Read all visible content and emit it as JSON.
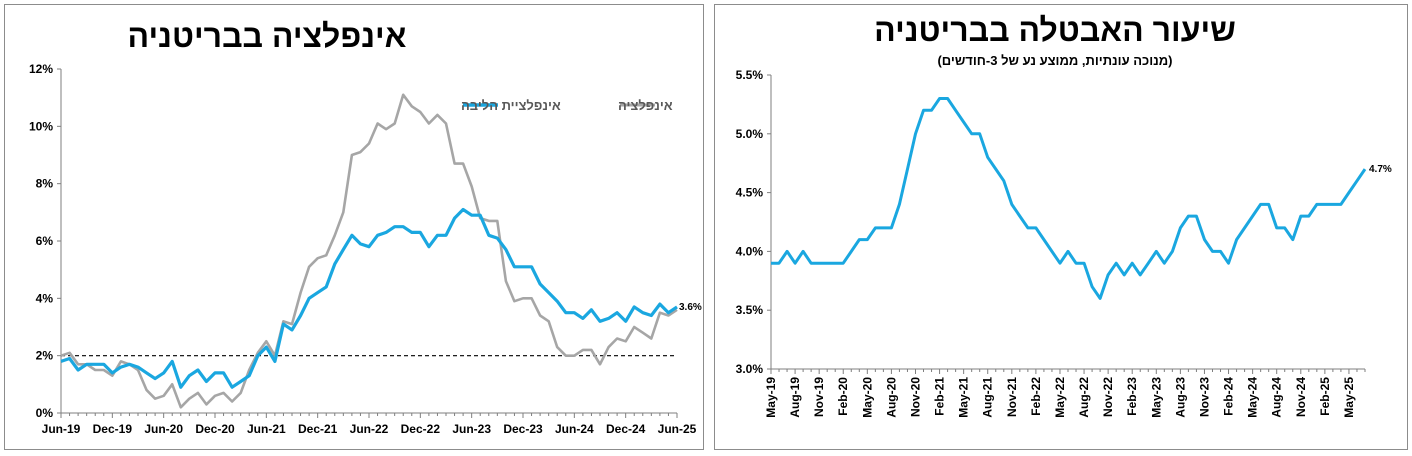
{
  "chart_data": [
    {
      "type": "line",
      "title": "אינפלציה בבריטניה",
      "x_tick_labels": [
        "Jun-19",
        "Dec-19",
        "Jun-20",
        "Dec-20",
        "Jun-21",
        "Dec-21",
        "Jun-22",
        "Dec-22",
        "Jun-23",
        "Dec-23",
        "Jun-24",
        "Dec-24",
        "Jun-25"
      ],
      "y_tick_labels": [
        "0%",
        "2%",
        "4%",
        "6%",
        "8%",
        "10%",
        "12%"
      ],
      "ylim": [
        0,
        12
      ],
      "y_unit": "%",
      "grid": false,
      "legend_position": "top-right",
      "reference_line": {
        "y": 2,
        "style": "dashed",
        "color": "#000000"
      },
      "end_label": "3.6%",
      "x_start": "Jun-19",
      "x_frequency": "monthly",
      "series": [
        {
          "name": "אינפלציית הליבה",
          "color": "#1aa7e0",
          "values": [
            1.8,
            1.9,
            1.5,
            1.7,
            1.7,
            1.7,
            1.4,
            1.6,
            1.7,
            1.6,
            1.4,
            1.2,
            1.4,
            1.8,
            0.9,
            1.3,
            1.5,
            1.1,
            1.4,
            1.4,
            0.9,
            1.1,
            1.3,
            2.0,
            2.3,
            1.8,
            3.1,
            2.9,
            3.4,
            4.0,
            4.2,
            4.4,
            5.2,
            5.7,
            6.2,
            5.9,
            5.8,
            6.2,
            6.3,
            6.5,
            6.5,
            6.3,
            6.3,
            5.8,
            6.2,
            6.2,
            6.8,
            7.1,
            6.9,
            6.9,
            6.2,
            6.1,
            5.7,
            5.1,
            5.1,
            5.1,
            4.5,
            4.2,
            3.9,
            3.5,
            3.5,
            3.3,
            3.6,
            3.2,
            3.3,
            3.5,
            3.2,
            3.7,
            3.5,
            3.4,
            3.8,
            3.5,
            3.7
          ]
        },
        {
          "name": "אינפלציה",
          "color": "#a6a6a6",
          "values": [
            2.0,
            2.1,
            1.7,
            1.7,
            1.5,
            1.5,
            1.3,
            1.8,
            1.7,
            1.5,
            0.8,
            0.5,
            0.6,
            1.0,
            0.2,
            0.5,
            0.7,
            0.3,
            0.6,
            0.7,
            0.4,
            0.7,
            1.5,
            2.1,
            2.5,
            2.0,
            3.2,
            3.1,
            4.2,
            5.1,
            5.4,
            5.5,
            6.2,
            7.0,
            9.0,
            9.1,
            9.4,
            10.1,
            9.9,
            10.1,
            11.1,
            10.7,
            10.5,
            10.1,
            10.4,
            10.1,
            8.7,
            8.7,
            7.9,
            6.8,
            6.7,
            6.7,
            4.6,
            3.9,
            4.0,
            4.0,
            3.4,
            3.2,
            2.3,
            2.0,
            2.0,
            2.2,
            2.2,
            1.7,
            2.3,
            2.6,
            2.5,
            3.0,
            2.8,
            2.6,
            3.5,
            3.4,
            3.6
          ]
        }
      ]
    },
    {
      "type": "line",
      "title": "שיעור האבטלה בבריטניה",
      "subtitle": "(מנוכה עונתיות, ממוצע נע של 3-חודשים)",
      "x_tick_labels": [
        "May-19",
        "Aug-19",
        "Nov-19",
        "Feb-20",
        "May-20",
        "Aug-20",
        "Nov-20",
        "Feb-21",
        "May-21",
        "Aug-21",
        "Nov-21",
        "Feb-22",
        "May-22",
        "Aug-22",
        "Nov-22",
        "Feb-23",
        "May-23",
        "Aug-23",
        "Nov-23",
        "Feb-24",
        "May-24",
        "Aug-24",
        "Nov-24",
        "Feb-25",
        "May-25"
      ],
      "y_tick_labels": [
        "3.0%",
        "3.5%",
        "4.0%",
        "4.5%",
        "5.0%",
        "5.5%"
      ],
      "ylim": [
        3.0,
        5.5
      ],
      "y_unit": "%",
      "grid": false,
      "end_label": "4.7%",
      "x_start": "May-19",
      "x_frequency": "monthly",
      "series": [
        {
          "color": "#1aa7e0",
          "values": [
            3.9,
            3.9,
            4.0,
            3.9,
            4.0,
            3.9,
            3.9,
            3.9,
            3.9,
            3.9,
            4.0,
            4.1,
            4.1,
            4.2,
            4.2,
            4.2,
            4.4,
            4.7,
            5.0,
            5.2,
            5.2,
            5.3,
            5.3,
            5.2,
            5.1,
            5.0,
            5.0,
            4.8,
            4.7,
            4.6,
            4.4,
            4.3,
            4.2,
            4.2,
            4.1,
            4.0,
            3.9,
            4.0,
            3.9,
            3.9,
            3.7,
            3.6,
            3.8,
            3.9,
            3.8,
            3.9,
            3.8,
            3.9,
            4.0,
            3.9,
            4.0,
            4.2,
            4.3,
            4.3,
            4.1,
            4.0,
            4.0,
            3.9,
            4.1,
            4.2,
            4.3,
            4.4,
            4.4,
            4.2,
            4.2,
            4.1,
            4.3,
            4.3,
            4.4,
            4.4,
            4.4,
            4.4,
            4.5,
            4.6,
            4.7
          ]
        }
      ]
    }
  ]
}
